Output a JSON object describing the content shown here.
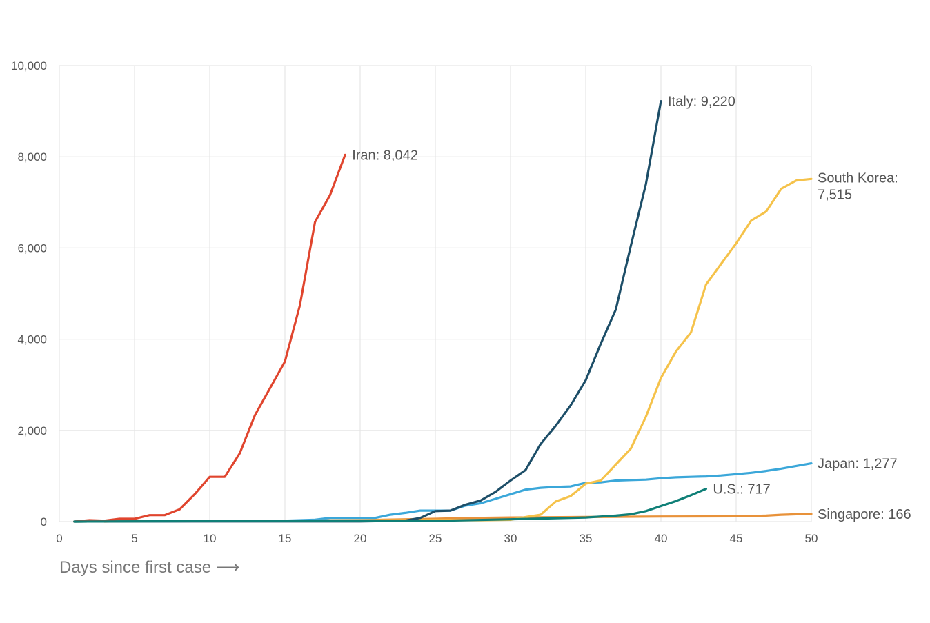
{
  "chart_data": {
    "type": "line",
    "xlabel": "Days since first case ⟶",
    "ylabel": "",
    "xlim": [
      0,
      50
    ],
    "ylim": [
      0,
      10000
    ],
    "x_ticks": [
      0,
      5,
      10,
      15,
      20,
      25,
      30,
      35,
      40,
      45,
      50
    ],
    "x_tick_labels": [
      "0",
      "5",
      "10",
      "15",
      "20",
      "25",
      "30",
      "35",
      "40",
      "45",
      "50"
    ],
    "y_ticks": [
      0,
      2000,
      4000,
      6000,
      8000,
      10000
    ],
    "y_tick_labels": [
      "0",
      "2,000",
      "4,000",
      "6,000",
      "8,000",
      "10,000"
    ],
    "grid": true,
    "legend": "direct labels at line ends",
    "series": [
      {
        "name": "Singapore",
        "end_label": [
          "Singapore: 166"
        ],
        "color": "#e8923a",
        "x": [
          3,
          5,
          10,
          15,
          20,
          25,
          27,
          30,
          35,
          40,
          45,
          46,
          47,
          48,
          49,
          50
        ],
        "y": [
          0,
          10,
          20,
          20,
          30,
          60,
          75,
          90,
          100,
          110,
          115,
          120,
          130,
          150,
          160,
          166
        ]
      },
      {
        "name": "Japan",
        "end_label": [
          "Japan: 1,277"
        ],
        "color": "#3ba7d9",
        "x": [
          1,
          5,
          10,
          15,
          17,
          18,
          21,
          22,
          23,
          24,
          26,
          27,
          28,
          29,
          30,
          31,
          32,
          33,
          34,
          35,
          36,
          37,
          38,
          39,
          40,
          41,
          42,
          43,
          44,
          45,
          46,
          47,
          48,
          49,
          50
        ],
        "y": [
          0,
          5,
          10,
          20,
          40,
          80,
          80,
          150,
          190,
          240,
          240,
          350,
          400,
          500,
          600,
          700,
          740,
          760,
          770,
          850,
          860,
          900,
          910,
          920,
          950,
          970,
          980,
          990,
          1010,
          1040,
          1070,
          1110,
          1160,
          1220,
          1277
        ]
      },
      {
        "name": "South Korea",
        "end_label": [
          "South Korea:",
          "7,515"
        ],
        "color": "#f5c24a",
        "x": [
          1,
          5,
          10,
          15,
          20,
          25,
          28,
          30,
          31,
          32,
          33,
          34,
          35,
          36,
          37,
          38,
          39,
          40,
          41,
          42,
          43,
          44,
          45,
          46,
          47,
          48,
          49,
          50
        ],
        "y": [
          0,
          5,
          15,
          20,
          25,
          30,
          30,
          40,
          100,
          150,
          440,
          560,
          830,
          900,
          1250,
          1600,
          2300,
          3150,
          3730,
          4150,
          5200,
          5650,
          6100,
          6600,
          6800,
          7300,
          7480,
          7515
        ]
      },
      {
        "name": "Italy",
        "end_label": [
          "Italy: 9,220"
        ],
        "color": "#1d4e68",
        "x": [
          1,
          5,
          10,
          15,
          20,
          23,
          24,
          25,
          26,
          27,
          28,
          29,
          30,
          31,
          32,
          33,
          34,
          35,
          36,
          37,
          38,
          39,
          40
        ],
        "y": [
          0,
          3,
          3,
          3,
          3,
          20,
          80,
          230,
          240,
          370,
          460,
          650,
          900,
          1130,
          1700,
          2100,
          2550,
          3100,
          3900,
          4650,
          6050,
          7400,
          9220
        ]
      },
      {
        "name": "Iran",
        "end_label": [
          "Iran: 8,042"
        ],
        "color": "#e0452e",
        "x": [
          1,
          2,
          3,
          4,
          5,
          6,
          7,
          8,
          9,
          10,
          11,
          12,
          13,
          14,
          15,
          16,
          17,
          18,
          19
        ],
        "y": [
          0,
          30,
          20,
          60,
          60,
          140,
          140,
          270,
          600,
          980,
          980,
          1500,
          2330,
          2920,
          3510,
          4750,
          6570,
          7160,
          8042
        ]
      },
      {
        "name": "U.S.",
        "end_label": [
          "U.S.: 717"
        ],
        "color": "#0f7f77",
        "x": [
          1,
          5,
          10,
          15,
          20,
          25,
          30,
          35,
          36,
          37,
          38,
          39,
          40,
          41,
          42,
          43
        ],
        "y": [
          0,
          5,
          10,
          10,
          10,
          15,
          50,
          90,
          110,
          130,
          160,
          230,
          340,
          450,
          580,
          717
        ]
      }
    ]
  }
}
